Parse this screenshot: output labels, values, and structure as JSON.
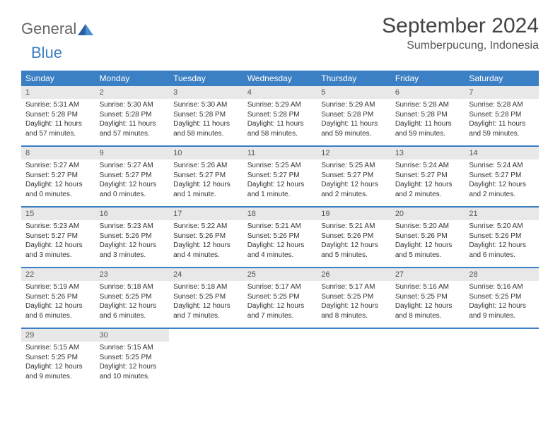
{
  "logo": {
    "general": "General",
    "blue": "Blue"
  },
  "title": "September 2024",
  "location": "Sumberpucung, Indonesia",
  "day_headers": [
    "Sunday",
    "Monday",
    "Tuesday",
    "Wednesday",
    "Thursday",
    "Friday",
    "Saturday"
  ],
  "colors": {
    "header_bg": "#3b7fc4",
    "header_text": "#ffffff",
    "daynum_bg": "#e8e8e8",
    "logo_gray": "#666666",
    "logo_blue": "#3b7fc4"
  },
  "weeks": [
    [
      {
        "n": "1",
        "sr": "5:31 AM",
        "ss": "5:28 PM",
        "dl": "11 hours and 57 minutes."
      },
      {
        "n": "2",
        "sr": "5:30 AM",
        "ss": "5:28 PM",
        "dl": "11 hours and 57 minutes."
      },
      {
        "n": "3",
        "sr": "5:30 AM",
        "ss": "5:28 PM",
        "dl": "11 hours and 58 minutes."
      },
      {
        "n": "4",
        "sr": "5:29 AM",
        "ss": "5:28 PM",
        "dl": "11 hours and 58 minutes."
      },
      {
        "n": "5",
        "sr": "5:29 AM",
        "ss": "5:28 PM",
        "dl": "11 hours and 59 minutes."
      },
      {
        "n": "6",
        "sr": "5:28 AM",
        "ss": "5:28 PM",
        "dl": "11 hours and 59 minutes."
      },
      {
        "n": "7",
        "sr": "5:28 AM",
        "ss": "5:28 PM",
        "dl": "11 hours and 59 minutes."
      }
    ],
    [
      {
        "n": "8",
        "sr": "5:27 AM",
        "ss": "5:27 PM",
        "dl": "12 hours and 0 minutes."
      },
      {
        "n": "9",
        "sr": "5:27 AM",
        "ss": "5:27 PM",
        "dl": "12 hours and 0 minutes."
      },
      {
        "n": "10",
        "sr": "5:26 AM",
        "ss": "5:27 PM",
        "dl": "12 hours and 1 minute."
      },
      {
        "n": "11",
        "sr": "5:25 AM",
        "ss": "5:27 PM",
        "dl": "12 hours and 1 minute."
      },
      {
        "n": "12",
        "sr": "5:25 AM",
        "ss": "5:27 PM",
        "dl": "12 hours and 2 minutes."
      },
      {
        "n": "13",
        "sr": "5:24 AM",
        "ss": "5:27 PM",
        "dl": "12 hours and 2 minutes."
      },
      {
        "n": "14",
        "sr": "5:24 AM",
        "ss": "5:27 PM",
        "dl": "12 hours and 2 minutes."
      }
    ],
    [
      {
        "n": "15",
        "sr": "5:23 AM",
        "ss": "5:27 PM",
        "dl": "12 hours and 3 minutes."
      },
      {
        "n": "16",
        "sr": "5:23 AM",
        "ss": "5:26 PM",
        "dl": "12 hours and 3 minutes."
      },
      {
        "n": "17",
        "sr": "5:22 AM",
        "ss": "5:26 PM",
        "dl": "12 hours and 4 minutes."
      },
      {
        "n": "18",
        "sr": "5:21 AM",
        "ss": "5:26 PM",
        "dl": "12 hours and 4 minutes."
      },
      {
        "n": "19",
        "sr": "5:21 AM",
        "ss": "5:26 PM",
        "dl": "12 hours and 5 minutes."
      },
      {
        "n": "20",
        "sr": "5:20 AM",
        "ss": "5:26 PM",
        "dl": "12 hours and 5 minutes."
      },
      {
        "n": "21",
        "sr": "5:20 AM",
        "ss": "5:26 PM",
        "dl": "12 hours and 6 minutes."
      }
    ],
    [
      {
        "n": "22",
        "sr": "5:19 AM",
        "ss": "5:26 PM",
        "dl": "12 hours and 6 minutes."
      },
      {
        "n": "23",
        "sr": "5:18 AM",
        "ss": "5:25 PM",
        "dl": "12 hours and 6 minutes."
      },
      {
        "n": "24",
        "sr": "5:18 AM",
        "ss": "5:25 PM",
        "dl": "12 hours and 7 minutes."
      },
      {
        "n": "25",
        "sr": "5:17 AM",
        "ss": "5:25 PM",
        "dl": "12 hours and 7 minutes."
      },
      {
        "n": "26",
        "sr": "5:17 AM",
        "ss": "5:25 PM",
        "dl": "12 hours and 8 minutes."
      },
      {
        "n": "27",
        "sr": "5:16 AM",
        "ss": "5:25 PM",
        "dl": "12 hours and 8 minutes."
      },
      {
        "n": "28",
        "sr": "5:16 AM",
        "ss": "5:25 PM",
        "dl": "12 hours and 9 minutes."
      }
    ],
    [
      {
        "n": "29",
        "sr": "5:15 AM",
        "ss": "5:25 PM",
        "dl": "12 hours and 9 minutes."
      },
      {
        "n": "30",
        "sr": "5:15 AM",
        "ss": "5:25 PM",
        "dl": "12 hours and 10 minutes."
      },
      null,
      null,
      null,
      null,
      null
    ]
  ],
  "labels": {
    "sunrise": "Sunrise: ",
    "sunset": "Sunset: ",
    "daylight": "Daylight: "
  }
}
